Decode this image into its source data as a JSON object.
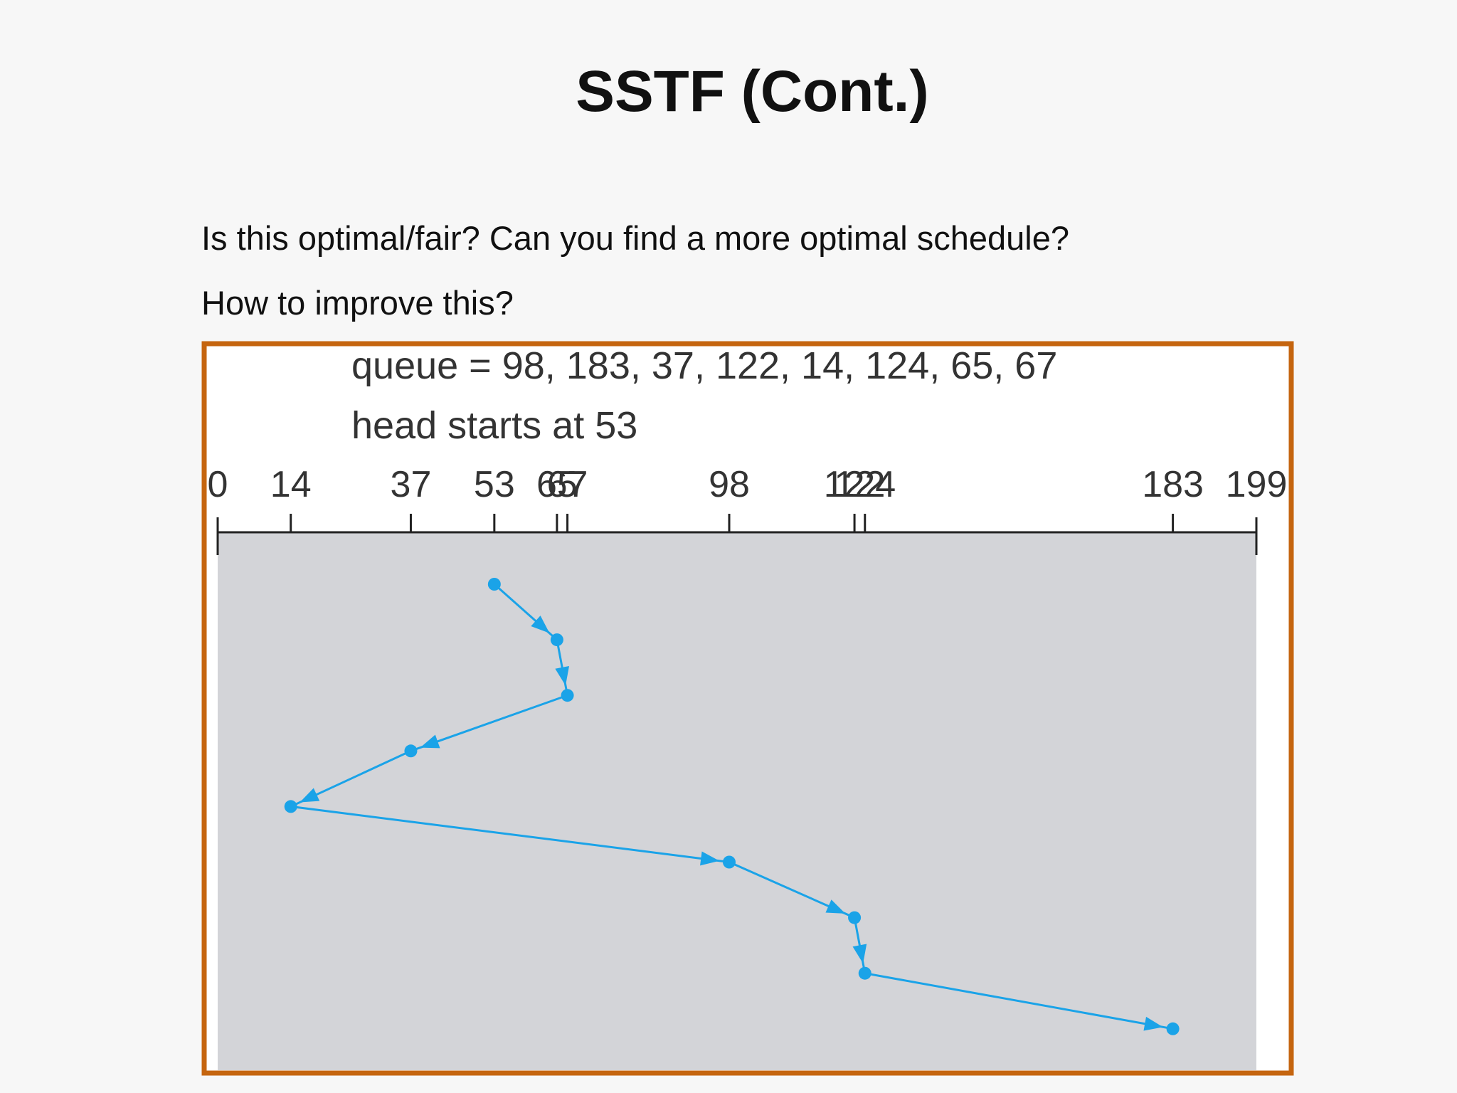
{
  "title": "SSTF (Cont.)",
  "questions": [
    "Is this optimal/fair? Can you find a more optimal schedule?",
    "How to improve this?"
  ],
  "figure": {
    "queue_label": "queue = 98, 183, 37, 122, 14, 124, 65, 67",
    "head_label": "head starts at 53",
    "xlim": [
      0,
      199
    ],
    "xticks": [
      0,
      14,
      37,
      53,
      65,
      67,
      98,
      122,
      124,
      183,
      199
    ],
    "path": [
      53,
      65,
      67,
      37,
      14,
      98,
      122,
      124,
      183
    ]
  }
}
